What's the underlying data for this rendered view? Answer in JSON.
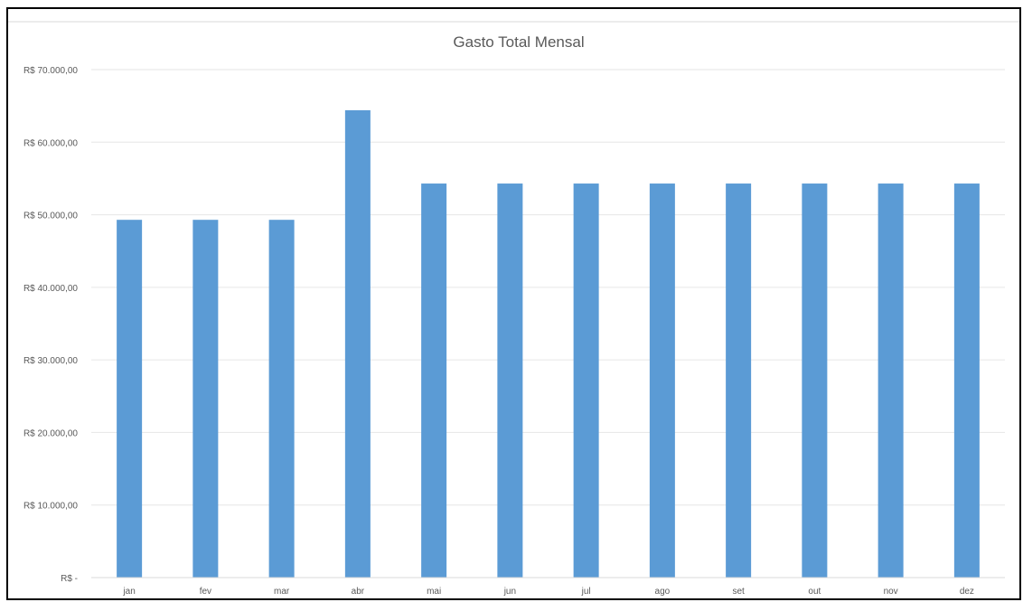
{
  "chart_data": {
    "type": "bar",
    "title": "Gasto Total Mensal",
    "categories": [
      "jan",
      "fev",
      "mar",
      "abr",
      "mai",
      "jun",
      "jul",
      "ago",
      "set",
      "out",
      "nov",
      "dez"
    ],
    "values": [
      49300,
      49300,
      49300,
      64400,
      54300,
      54300,
      54300,
      54300,
      54300,
      54300,
      54300,
      54300
    ],
    "ylim": [
      0,
      70000
    ],
    "yticks": [
      0,
      10000,
      20000,
      30000,
      40000,
      50000,
      60000,
      70000
    ],
    "ytick_labels": [
      "R$ -",
      "R$ 10.000,00",
      "R$ 20.000,00",
      "R$ 30.000,00",
      "R$ 40.000,00",
      "R$ 50.000,00",
      "R$ 60.000,00",
      "R$ 70.000,00"
    ],
    "xlabel": "",
    "ylabel": "",
    "grid": true,
    "legend": "none",
    "colors": {
      "bar": "#5b9bd5",
      "grid": "#e6e6e6",
      "axis": "#d9d9d9",
      "text": "#595959",
      "frame": "#000000",
      "top_rule": "#d9d9d9"
    }
  }
}
